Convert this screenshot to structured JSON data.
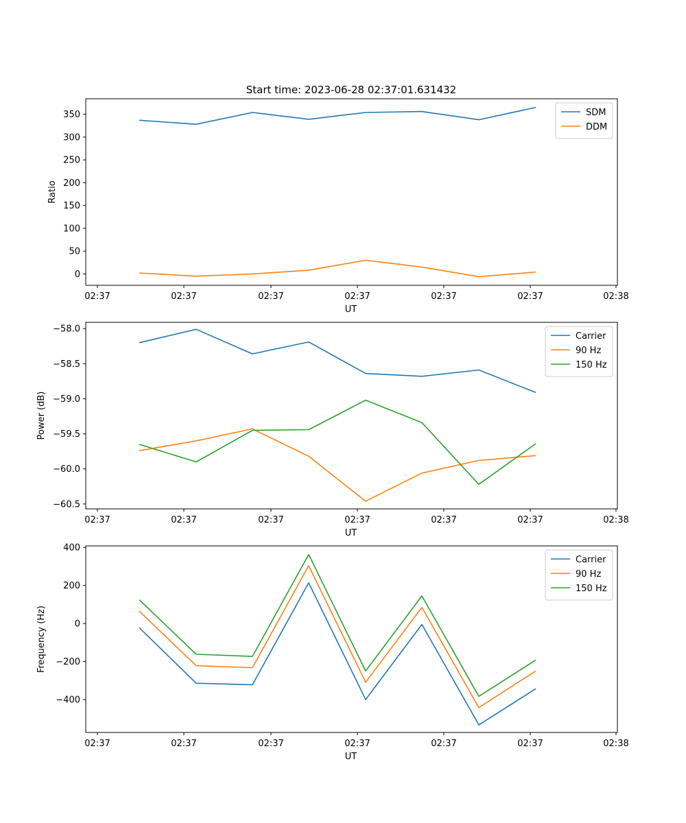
{
  "figure": {
    "title": "Start time: 2023-06-28 02:37:01.631432"
  },
  "chart_data": [
    {
      "type": "line",
      "title": "Start time: 2023-06-28 02:37:01.631432",
      "xlabel": "UT",
      "ylabel": "Ratio",
      "x_tick_labels": [
        "02:37",
        "02:37",
        "02:37",
        "02:37",
        "02:37",
        "02:37",
        "02:38"
      ],
      "y_ticks": [
        0,
        50,
        100,
        150,
        200,
        250,
        300,
        350
      ],
      "ylim": [
        -25,
        384
      ],
      "legend_position": "top-right",
      "series": [
        {
          "name": "SDM",
          "color": "#1f77b4",
          "values": [
            337,
            328,
            354,
            339,
            354,
            356,
            338,
            365
          ]
        },
        {
          "name": "DDM",
          "color": "#ff7f0e",
          "values": [
            2,
            -5,
            0,
            8,
            30,
            15,
            -6,
            4
          ]
        }
      ]
    },
    {
      "type": "line",
      "title": "",
      "xlabel": "UT",
      "ylabel": "Power (dB)",
      "x_tick_labels": [
        "02:37",
        "02:37",
        "02:37",
        "02:37",
        "02:37",
        "02:37",
        "02:38"
      ],
      "y_ticks": [
        -58.0,
        -58.5,
        -59.0,
        -59.5,
        -60.0,
        -60.5
      ],
      "y_tick_labels": [
        "−58.0",
        "−58.5",
        "−59.0",
        "−59.5",
        "−60.0",
        "−60.5"
      ],
      "ylim": [
        -60.57,
        -57.91
      ],
      "legend_position": "top-right",
      "series": [
        {
          "name": "Carrier",
          "color": "#1f77b4",
          "values": [
            -58.2,
            -58.01,
            -58.36,
            -58.19,
            -58.64,
            -58.68,
            -58.59,
            -58.91
          ]
        },
        {
          "name": "90 Hz",
          "color": "#ff7f0e",
          "values": [
            -59.74,
            -59.6,
            -59.43,
            -59.82,
            -60.46,
            -60.06,
            -59.88,
            -59.81
          ]
        },
        {
          "name": "150 Hz",
          "color": "#2ca02c",
          "values": [
            -59.65,
            -59.9,
            -59.45,
            -59.44,
            -59.02,
            -59.34,
            -60.22,
            -59.64
          ]
        }
      ]
    },
    {
      "type": "line",
      "title": "",
      "xlabel": "UT",
      "ylabel": "Frequency (Hz)",
      "x_tick_labels": [
        "02:37",
        "02:37",
        "02:37",
        "02:37",
        "02:37",
        "02:37",
        "02:38"
      ],
      "y_ticks": [
        400,
        200,
        0,
        -200,
        -400
      ],
      "y_tick_labels": [
        "400",
        "200",
        "0",
        "−200",
        "−400"
      ],
      "ylim": [
        -573,
        408
      ],
      "legend_position": "top-right",
      "series": [
        {
          "name": "Carrier",
          "color": "#1f77b4",
          "values": [
            -22,
            -314,
            -322,
            214,
            -400,
            -5,
            -533,
            -343
          ]
        },
        {
          "name": "90 Hz",
          "color": "#ff7f0e",
          "values": [
            65,
            -222,
            -232,
            304,
            -309,
            85,
            -442,
            -250
          ]
        },
        {
          "name": "150 Hz",
          "color": "#2ca02c",
          "values": [
            125,
            -162,
            -173,
            363,
            -250,
            145,
            -383,
            -192
          ]
        }
      ]
    }
  ]
}
